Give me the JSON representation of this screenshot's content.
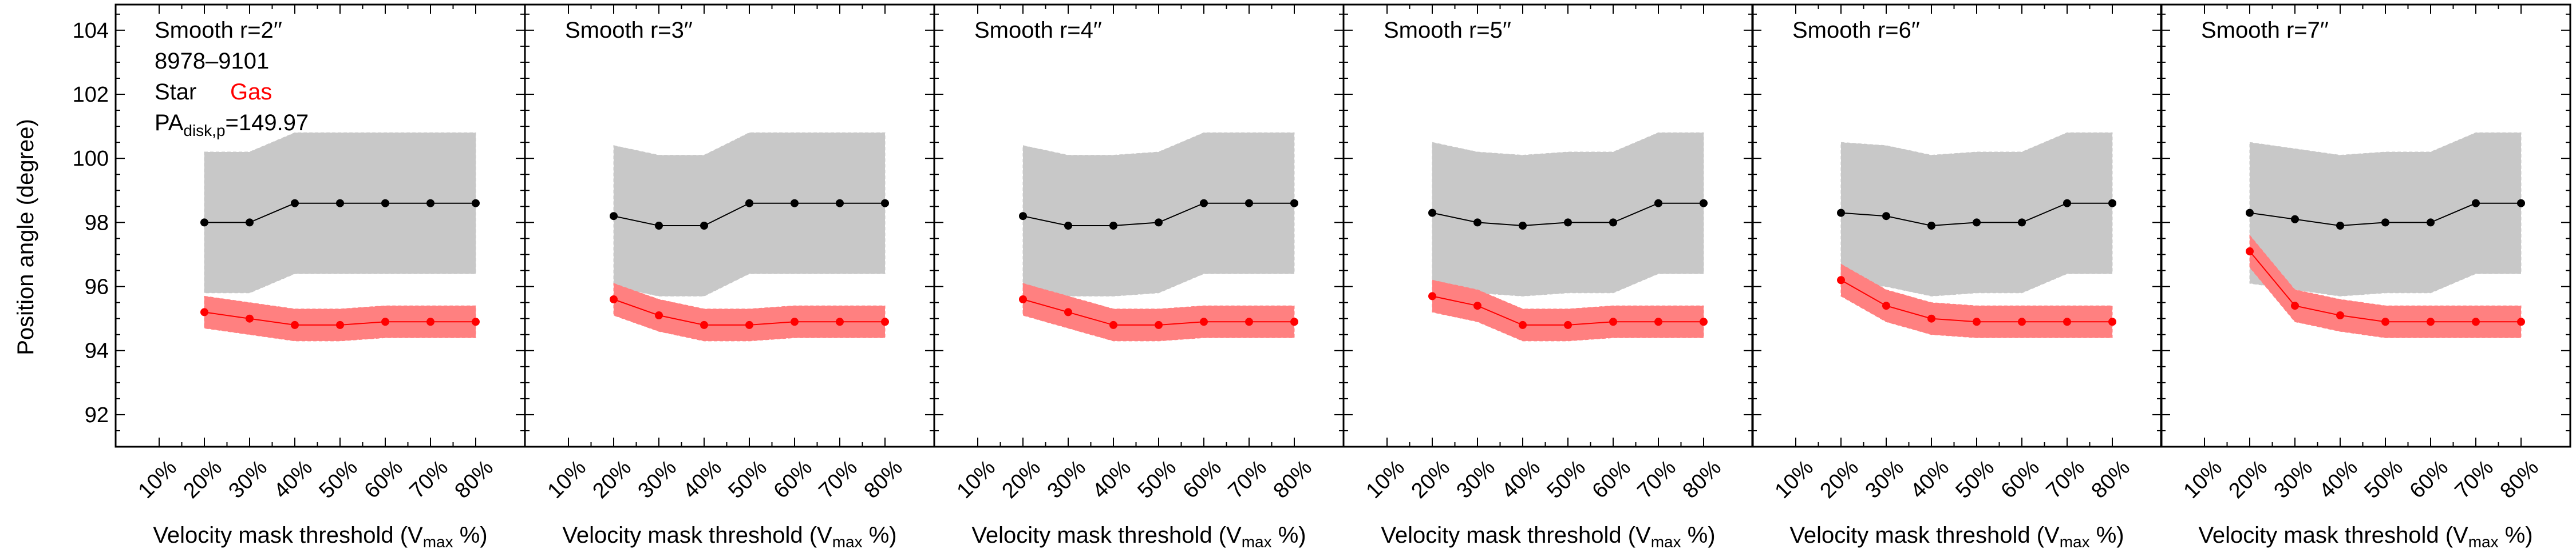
{
  "ylabel": "Position angle (degree)",
  "xlabel_main": "Velocity mask threshold (V",
  "xlabel_sub": "max",
  "xlabel_tail": " %)",
  "legend": {
    "galaxy_id": "8978–9101",
    "star_label": "Star",
    "gas_label": "Gas",
    "pa_main": "PA",
    "pa_sub": "disk,p",
    "pa_value": "=149.97"
  },
  "colors": {
    "star_line": "#000000",
    "star_band": "#c8c8c8",
    "gas_line": "#ff0000",
    "gas_band": "#ff8080"
  },
  "chart_data": [
    {
      "type": "line",
      "title": "Smooth r=2′′",
      "categories": [
        "10%",
        "20%",
        "30%",
        "40%",
        "50%",
        "60%",
        "70%",
        "80%"
      ],
      "ylim": [
        91,
        104.8
      ],
      "yticks": [
        92,
        94,
        96,
        98,
        100,
        102,
        104
      ],
      "series": [
        {
          "name": "Star",
          "x": [
            "20%",
            "30%",
            "40%",
            "50%",
            "60%",
            "70%",
            "80%"
          ],
          "values": [
            98.0,
            98.0,
            98.6,
            98.6,
            98.6,
            98.6,
            98.6
          ],
          "upper": [
            100.2,
            100.2,
            100.8,
            100.8,
            100.8,
            100.8,
            100.8
          ],
          "lower": [
            95.8,
            95.8,
            96.4,
            96.4,
            96.4,
            96.4,
            96.4
          ]
        },
        {
          "name": "Gas",
          "x": [
            "20%",
            "30%",
            "40%",
            "50%",
            "60%",
            "70%",
            "80%"
          ],
          "values": [
            95.2,
            95.0,
            94.8,
            94.8,
            94.9,
            94.9,
            94.9
          ],
          "upper": [
            95.7,
            95.5,
            95.3,
            95.3,
            95.4,
            95.4,
            95.4
          ],
          "lower": [
            94.7,
            94.5,
            94.3,
            94.3,
            94.4,
            94.4,
            94.4
          ]
        }
      ]
    },
    {
      "type": "line",
      "title": "Smooth r=3′′",
      "categories": [
        "10%",
        "20%",
        "30%",
        "40%",
        "50%",
        "60%",
        "70%",
        "80%"
      ],
      "ylim": [
        91,
        104.8
      ],
      "yticks": [
        92,
        94,
        96,
        98,
        100,
        102,
        104
      ],
      "series": [
        {
          "name": "Star",
          "x": [
            "20%",
            "30%",
            "40%",
            "50%",
            "60%",
            "70%",
            "80%"
          ],
          "values": [
            98.2,
            97.9,
            97.9,
            98.6,
            98.6,
            98.6,
            98.6
          ],
          "upper": [
            100.4,
            100.1,
            100.1,
            100.8,
            100.8,
            100.8,
            100.8
          ],
          "lower": [
            96.0,
            95.7,
            95.7,
            96.4,
            96.4,
            96.4,
            96.4
          ]
        },
        {
          "name": "Gas",
          "x": [
            "20%",
            "30%",
            "40%",
            "50%",
            "60%",
            "70%",
            "80%"
          ],
          "values": [
            95.6,
            95.1,
            94.8,
            94.8,
            94.9,
            94.9,
            94.9
          ],
          "upper": [
            96.1,
            95.6,
            95.3,
            95.3,
            95.4,
            95.4,
            95.4
          ],
          "lower": [
            95.1,
            94.6,
            94.3,
            94.3,
            94.4,
            94.4,
            94.4
          ]
        }
      ]
    },
    {
      "type": "line",
      "title": "Smooth r=4′′",
      "categories": [
        "10%",
        "20%",
        "30%",
        "40%",
        "50%",
        "60%",
        "70%",
        "80%"
      ],
      "ylim": [
        91,
        104.8
      ],
      "yticks": [
        92,
        94,
        96,
        98,
        100,
        102,
        104
      ],
      "series": [
        {
          "name": "Star",
          "x": [
            "20%",
            "30%",
            "40%",
            "50%",
            "60%",
            "70%",
            "80%"
          ],
          "values": [
            98.2,
            97.9,
            97.9,
            98.0,
            98.6,
            98.6,
            98.6
          ],
          "upper": [
            100.4,
            100.1,
            100.1,
            100.2,
            100.8,
            100.8,
            100.8
          ],
          "lower": [
            96.0,
            95.7,
            95.7,
            95.8,
            96.4,
            96.4,
            96.4
          ]
        },
        {
          "name": "Gas",
          "x": [
            "20%",
            "30%",
            "40%",
            "50%",
            "60%",
            "70%",
            "80%"
          ],
          "values": [
            95.6,
            95.2,
            94.8,
            94.8,
            94.9,
            94.9,
            94.9
          ],
          "upper": [
            96.1,
            95.7,
            95.3,
            95.3,
            95.4,
            95.4,
            95.4
          ],
          "lower": [
            95.1,
            94.7,
            94.3,
            94.3,
            94.4,
            94.4,
            94.4
          ]
        }
      ]
    },
    {
      "type": "line",
      "title": "Smooth r=5′′",
      "categories": [
        "10%",
        "20%",
        "30%",
        "40%",
        "50%",
        "60%",
        "70%",
        "80%"
      ],
      "ylim": [
        91,
        104.8
      ],
      "yticks": [
        92,
        94,
        96,
        98,
        100,
        102,
        104
      ],
      "series": [
        {
          "name": "Star",
          "x": [
            "20%",
            "30%",
            "40%",
            "50%",
            "60%",
            "70%",
            "80%"
          ],
          "values": [
            98.3,
            98.0,
            97.9,
            98.0,
            98.0,
            98.6,
            98.6
          ],
          "upper": [
            100.5,
            100.2,
            100.1,
            100.2,
            100.2,
            100.8,
            100.8
          ],
          "lower": [
            96.1,
            95.8,
            95.7,
            95.8,
            95.8,
            96.4,
            96.4
          ]
        },
        {
          "name": "Gas",
          "x": [
            "20%",
            "30%",
            "40%",
            "50%",
            "60%",
            "70%",
            "80%"
          ],
          "values": [
            95.7,
            95.4,
            94.8,
            94.8,
            94.9,
            94.9,
            94.9
          ],
          "upper": [
            96.2,
            95.9,
            95.3,
            95.3,
            95.4,
            95.4,
            95.4
          ],
          "lower": [
            95.2,
            94.9,
            94.3,
            94.3,
            94.4,
            94.4,
            94.4
          ]
        }
      ]
    },
    {
      "type": "line",
      "title": "Smooth r=6′′",
      "categories": [
        "10%",
        "20%",
        "30%",
        "40%",
        "50%",
        "60%",
        "70%",
        "80%"
      ],
      "ylim": [
        91,
        104.8
      ],
      "yticks": [
        92,
        94,
        96,
        98,
        100,
        102,
        104
      ],
      "series": [
        {
          "name": "Star",
          "x": [
            "20%",
            "30%",
            "40%",
            "50%",
            "60%",
            "70%",
            "80%"
          ],
          "values": [
            98.3,
            98.2,
            97.9,
            98.0,
            98.0,
            98.6,
            98.6
          ],
          "upper": [
            100.5,
            100.4,
            100.1,
            100.2,
            100.2,
            100.8,
            100.8
          ],
          "lower": [
            96.1,
            96.0,
            95.7,
            95.8,
            95.8,
            96.4,
            96.4
          ]
        },
        {
          "name": "Gas",
          "x": [
            "20%",
            "30%",
            "40%",
            "50%",
            "60%",
            "70%",
            "80%"
          ],
          "values": [
            96.2,
            95.4,
            95.0,
            94.9,
            94.9,
            94.9,
            94.9
          ],
          "upper": [
            96.7,
            95.9,
            95.5,
            95.4,
            95.4,
            95.4,
            95.4
          ],
          "lower": [
            95.7,
            94.9,
            94.5,
            94.4,
            94.4,
            94.4,
            94.4
          ]
        }
      ]
    },
    {
      "type": "line",
      "title": "Smooth r=7′′",
      "categories": [
        "10%",
        "20%",
        "30%",
        "40%",
        "50%",
        "60%",
        "70%",
        "80%"
      ],
      "ylim": [
        91,
        104.8
      ],
      "yticks": [
        92,
        94,
        96,
        98,
        100,
        102,
        104
      ],
      "series": [
        {
          "name": "Star",
          "x": [
            "20%",
            "30%",
            "40%",
            "50%",
            "60%",
            "70%",
            "80%"
          ],
          "values": [
            98.3,
            98.1,
            97.9,
            98.0,
            98.0,
            98.6,
            98.6
          ],
          "upper": [
            100.5,
            100.3,
            100.1,
            100.2,
            100.2,
            100.8,
            100.8
          ],
          "lower": [
            96.1,
            95.9,
            95.7,
            95.8,
            95.8,
            96.4,
            96.4
          ]
        },
        {
          "name": "Gas",
          "x": [
            "20%",
            "30%",
            "40%",
            "50%",
            "60%",
            "70%",
            "80%"
          ],
          "values": [
            97.1,
            95.4,
            95.1,
            94.9,
            94.9,
            94.9,
            94.9
          ],
          "upper": [
            97.6,
            95.9,
            95.6,
            95.4,
            95.4,
            95.4,
            95.4
          ],
          "lower": [
            96.6,
            94.9,
            94.6,
            94.4,
            94.4,
            94.4,
            94.4
          ]
        }
      ]
    }
  ]
}
